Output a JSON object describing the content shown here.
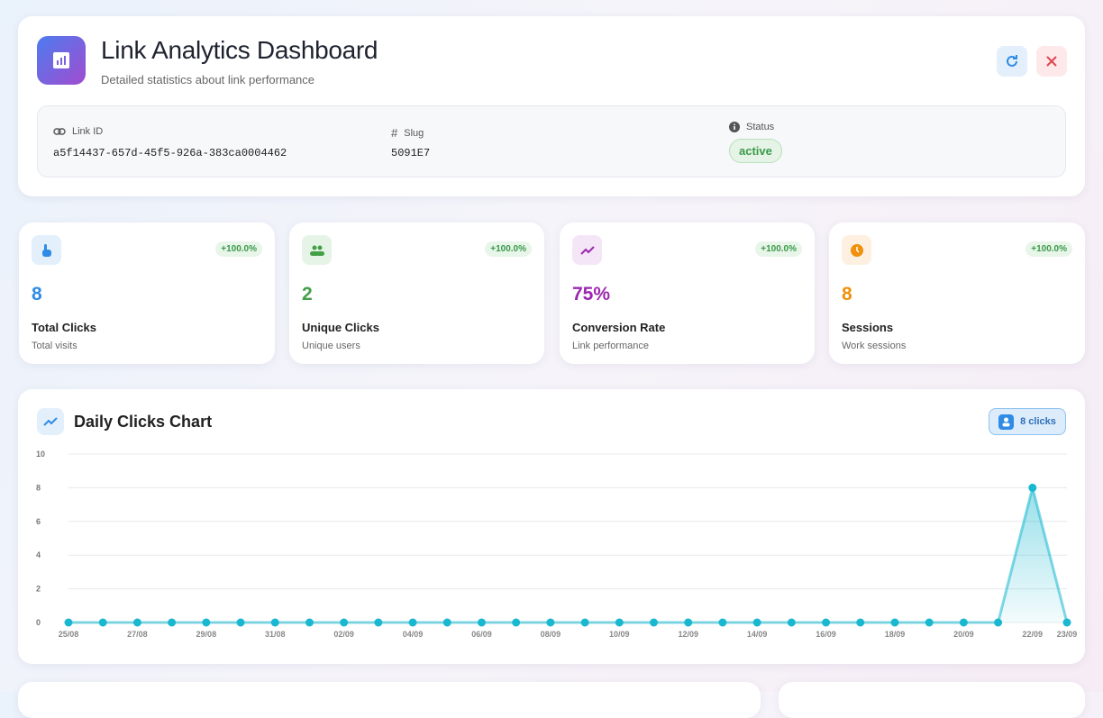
{
  "header": {
    "title": "Link Analytics Dashboard",
    "subtitle": "Detailed statistics about link performance"
  },
  "link_info": {
    "link_id_label": "Link ID",
    "link_id": "a5f14437-657d-45f5-926a-383ca0004462",
    "slug_label": "Slug",
    "slug": "5091E7",
    "status_label": "Status",
    "status": "active"
  },
  "stats": [
    {
      "value": "8",
      "label": "Total Clicks",
      "sublabel": "Total visits",
      "change": "+100.0%"
    },
    {
      "value": "2",
      "label": "Unique Clicks",
      "sublabel": "Unique users",
      "change": "+100.0%"
    },
    {
      "value": "75%",
      "label": "Conversion Rate",
      "sublabel": "Link performance",
      "change": "+100.0%"
    },
    {
      "value": "8",
      "label": "Sessions",
      "sublabel": "Work sessions",
      "change": "+100.0%"
    }
  ],
  "chart_data": {
    "type": "area",
    "title": "Daily Clicks Chart",
    "badge": "8 clicks",
    "x": [
      "25/08",
      null,
      "27/08",
      null,
      "29/08",
      null,
      "31/08",
      null,
      "02/09",
      null,
      "04/09",
      null,
      "06/09",
      null,
      "08/09",
      null,
      "10/09",
      null,
      "12/09",
      null,
      "14/09",
      null,
      "16/09",
      null,
      "18/09",
      null,
      "20/09",
      null,
      "22/09",
      "23/09"
    ],
    "values": [
      0,
      0,
      0,
      0,
      0,
      0,
      0,
      0,
      0,
      0,
      0,
      0,
      0,
      0,
      0,
      0,
      0,
      0,
      0,
      0,
      0,
      0,
      0,
      0,
      0,
      0,
      0,
      0,
      8,
      0
    ],
    "color": "#1ab8d0",
    "ylim": [
      0,
      10
    ],
    "yticks": [
      0,
      2,
      4,
      6,
      8,
      10
    ],
    "grid": true
  }
}
